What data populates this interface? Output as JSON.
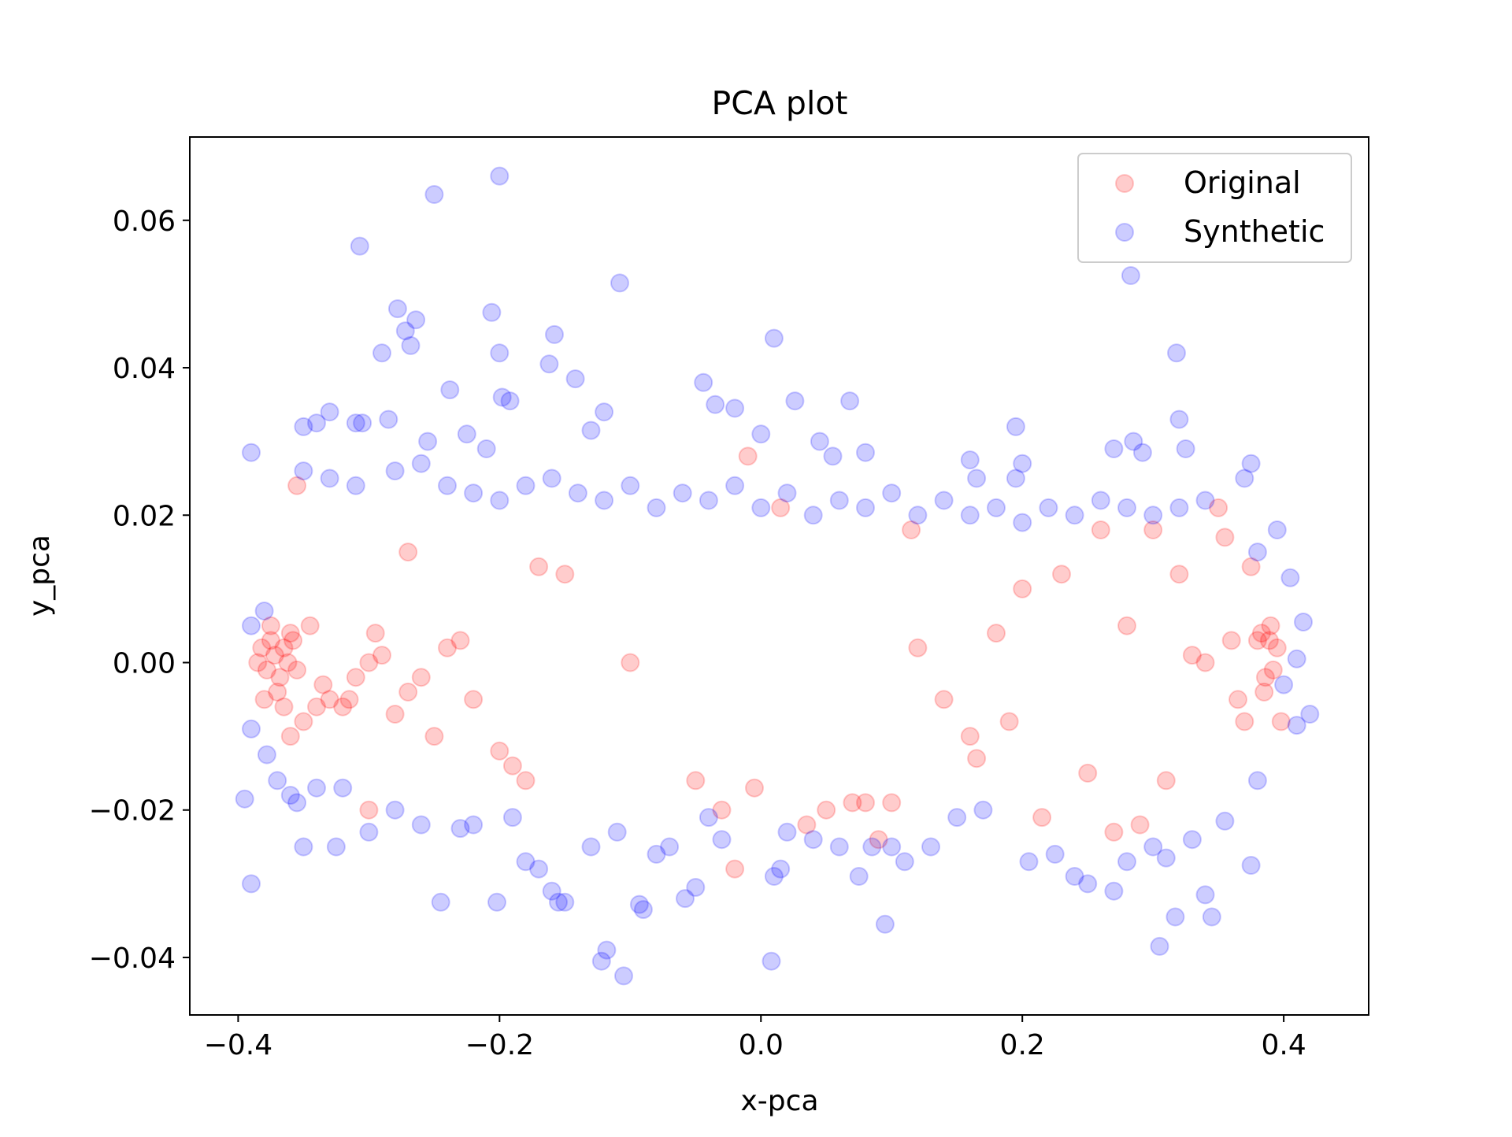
{
  "chart_data": {
    "type": "scatter",
    "title": "PCA plot",
    "xlabel": "x-pca",
    "ylabel": "y_pca",
    "xlim": [
      -0.437,
      0.465
    ],
    "ylim": [
      -0.0478,
      0.0713
    ],
    "xticks": [
      -0.4,
      -0.2,
      0.0,
      0.2,
      0.4
    ],
    "xtick_labels": [
      "−0.4",
      "−0.2",
      "0.0",
      "0.2",
      "0.4"
    ],
    "yticks": [
      -0.04,
      -0.02,
      0.0,
      0.02,
      0.04,
      0.06
    ],
    "ytick_labels": [
      "−0.04",
      "−0.02",
      "0.00",
      "0.02",
      "0.04",
      "0.06"
    ],
    "grid": false,
    "legend_position": "top-right",
    "series": [
      {
        "name": "Original",
        "color": "#ff0000",
        "alpha": 0.2,
        "points": [
          [
            -0.385,
            0.0
          ],
          [
            -0.382,
            0.002
          ],
          [
            -0.378,
            -0.001
          ],
          [
            -0.375,
            0.003
          ],
          [
            -0.372,
            0.001
          ],
          [
            -0.368,
            -0.002
          ],
          [
            -0.365,
            0.002
          ],
          [
            -0.362,
            0.0
          ],
          [
            -0.358,
            0.003
          ],
          [
            -0.355,
            -0.001
          ],
          [
            -0.38,
            -0.005
          ],
          [
            -0.375,
            0.005
          ],
          [
            -0.37,
            -0.004
          ],
          [
            -0.36,
            0.004
          ],
          [
            -0.365,
            -0.006
          ],
          [
            -0.355,
            0.024
          ],
          [
            -0.36,
            -0.01
          ],
          [
            -0.35,
            -0.008
          ],
          [
            -0.345,
            0.005
          ],
          [
            -0.34,
            -0.006
          ],
          [
            -0.33,
            -0.005
          ],
          [
            -0.32,
            -0.006
          ],
          [
            -0.31,
            -0.002
          ],
          [
            -0.3,
            0.0
          ],
          [
            -0.29,
            0.001
          ],
          [
            -0.28,
            -0.007
          ],
          [
            -0.27,
            -0.004
          ],
          [
            -0.26,
            -0.002
          ],
          [
            -0.25,
            -0.01
          ],
          [
            -0.24,
            0.002
          ],
          [
            -0.23,
            0.003
          ],
          [
            -0.22,
            -0.005
          ],
          [
            -0.2,
            -0.012
          ],
          [
            -0.19,
            -0.014
          ],
          [
            -0.18,
            -0.016
          ],
          [
            -0.17,
            0.013
          ],
          [
            -0.15,
            0.012
          ],
          [
            -0.1,
            0.0
          ],
          [
            -0.05,
            -0.016
          ],
          [
            -0.03,
            -0.02
          ],
          [
            -0.02,
            -0.028
          ],
          [
            -0.01,
            0.028
          ],
          [
            -0.005,
            -0.017
          ],
          [
            0.015,
            0.021
          ],
          [
            0.035,
            -0.022
          ],
          [
            0.05,
            -0.02
          ],
          [
            0.07,
            -0.019
          ],
          [
            0.08,
            -0.019
          ],
          [
            0.09,
            -0.024
          ],
          [
            0.1,
            -0.019
          ],
          [
            0.115,
            0.018
          ],
          [
            0.12,
            0.002
          ],
          [
            0.14,
            -0.005
          ],
          [
            0.16,
            -0.01
          ],
          [
            0.18,
            0.004
          ],
          [
            0.19,
            -0.008
          ],
          [
            0.2,
            0.01
          ],
          [
            0.215,
            -0.021
          ],
          [
            0.23,
            0.012
          ],
          [
            0.25,
            -0.015
          ],
          [
            0.26,
            0.018
          ],
          [
            0.27,
            -0.023
          ],
          [
            0.28,
            0.005
          ],
          [
            0.29,
            -0.022
          ],
          [
            0.3,
            0.018
          ],
          [
            0.31,
            -0.016
          ],
          [
            0.32,
            0.012
          ],
          [
            0.33,
            0.001
          ],
          [
            0.34,
            0.0
          ],
          [
            0.35,
            0.021
          ],
          [
            0.355,
            0.017
          ],
          [
            0.36,
            0.003
          ],
          [
            0.365,
            -0.005
          ],
          [
            0.37,
            -0.008
          ],
          [
            0.375,
            0.013
          ],
          [
            0.38,
            0.003
          ],
          [
            0.383,
            0.004
          ],
          [
            0.386,
            -0.002
          ],
          [
            0.389,
            0.003
          ],
          [
            0.392,
            -0.001
          ],
          [
            0.395,
            0.002
          ],
          [
            0.398,
            -0.008
          ],
          [
            0.385,
            -0.004
          ],
          [
            0.39,
            0.005
          ],
          [
            -0.3,
            -0.02
          ],
          [
            -0.315,
            -0.005
          ],
          [
            -0.335,
            -0.003
          ],
          [
            -0.27,
            0.015
          ],
          [
            -0.295,
            0.004
          ],
          [
            0.165,
            -0.013
          ]
        ]
      },
      {
        "name": "Synthetic",
        "color": "#0000ff",
        "alpha": 0.2,
        "points": [
          [
            -0.2,
            0.066
          ],
          [
            -0.25,
            0.0635
          ],
          [
            -0.307,
            0.0565
          ],
          [
            -0.108,
            0.0515
          ],
          [
            0.283,
            0.0525
          ],
          [
            -0.278,
            0.048
          ],
          [
            -0.206,
            0.0475
          ],
          [
            -0.264,
            0.0465
          ],
          [
            -0.272,
            0.045
          ],
          [
            -0.268,
            0.043
          ],
          [
            -0.29,
            0.042
          ],
          [
            -0.2,
            0.042
          ],
          [
            0.318,
            0.042
          ],
          [
            0.01,
            0.044
          ],
          [
            -0.158,
            0.0445
          ],
          [
            -0.162,
            0.0405
          ],
          [
            -0.142,
            0.0385
          ],
          [
            -0.238,
            0.037
          ],
          [
            -0.198,
            0.036
          ],
          [
            -0.192,
            0.0355
          ],
          [
            -0.044,
            0.038
          ],
          [
            0.026,
            0.0355
          ],
          [
            0.068,
            0.0355
          ],
          [
            -0.035,
            0.035
          ],
          [
            -0.02,
            0.0345
          ],
          [
            -0.39,
            0.0285
          ],
          [
            -0.39,
            -0.03
          ],
          [
            -0.395,
            -0.0185
          ],
          [
            -0.35,
            -0.025
          ],
          [
            -0.325,
            -0.025
          ],
          [
            -0.122,
            -0.0405
          ],
          [
            -0.118,
            -0.039
          ],
          [
            -0.105,
            -0.0425
          ],
          [
            0.008,
            -0.0405
          ],
          [
            0.095,
            -0.0355
          ],
          [
            0.305,
            -0.0385
          ],
          [
            0.317,
            -0.0345
          ],
          [
            0.345,
            -0.0345
          ],
          [
            0.34,
            -0.0315
          ],
          [
            -0.245,
            -0.0325
          ],
          [
            -0.202,
            -0.0325
          ],
          [
            -0.09,
            -0.0335
          ],
          [
            -0.093,
            -0.0328
          ],
          [
            -0.058,
            -0.032
          ],
          [
            -0.05,
            -0.0305
          ],
          [
            0.01,
            -0.029
          ],
          [
            0.015,
            -0.028
          ],
          [
            -0.155,
            -0.0325
          ],
          [
            0.31,
            -0.0265
          ],
          [
            0.375,
            -0.0275
          ],
          [
            0.41,
            -0.0085
          ],
          [
            0.42,
            -0.007
          ],
          [
            0.415,
            0.0055
          ],
          [
            0.405,
            0.0115
          ],
          [
            0.395,
            0.018
          ],
          [
            0.4,
            -0.003
          ],
          [
            0.41,
            0.0005
          ],
          [
            0.38,
            0.015
          ],
          [
            0.37,
            0.025
          ],
          [
            0.375,
            0.027
          ],
          [
            0.32,
            0.033
          ],
          [
            0.325,
            0.029
          ],
          [
            0.292,
            0.0285
          ],
          [
            0.285,
            0.03
          ],
          [
            0.27,
            0.029
          ],
          [
            0.195,
            0.032
          ],
          [
            0.195,
            0.025
          ],
          [
            0.2,
            0.027
          ],
          [
            0.165,
            0.025
          ],
          [
            0.16,
            0.0275
          ],
          [
            -0.33,
            0.034
          ],
          [
            -0.34,
            0.0325
          ],
          [
            -0.35,
            0.032
          ],
          [
            -0.31,
            0.0325
          ],
          [
            -0.305,
            0.0325
          ],
          [
            -0.285,
            0.033
          ],
          [
            -0.255,
            0.03
          ],
          [
            -0.225,
            0.031
          ],
          [
            -0.21,
            0.029
          ],
          [
            -0.13,
            0.0315
          ],
          [
            -0.12,
            0.034
          ],
          [
            0.0,
            0.031
          ],
          [
            0.045,
            0.03
          ],
          [
            0.055,
            0.028
          ],
          [
            0.08,
            0.0285
          ],
          [
            -0.38,
            0.007
          ],
          [
            -0.39,
            0.005
          ],
          [
            -0.39,
            -0.009
          ],
          [
            -0.378,
            -0.0125
          ],
          [
            -0.37,
            -0.016
          ],
          [
            -0.36,
            -0.018
          ],
          [
            -0.355,
            -0.019
          ],
          [
            -0.34,
            -0.017
          ],
          [
            -0.32,
            -0.017
          ],
          [
            -0.3,
            -0.023
          ],
          [
            -0.28,
            -0.02
          ],
          [
            -0.26,
            -0.022
          ],
          [
            -0.23,
            -0.0225
          ],
          [
            -0.22,
            -0.022
          ],
          [
            -0.19,
            -0.021
          ],
          [
            -0.18,
            -0.027
          ],
          [
            -0.17,
            -0.028
          ],
          [
            -0.16,
            -0.031
          ],
          [
            -0.15,
            -0.0325
          ],
          [
            -0.13,
            -0.025
          ],
          [
            -0.11,
            -0.023
          ],
          [
            -0.08,
            -0.026
          ],
          [
            -0.07,
            -0.025
          ],
          [
            -0.04,
            -0.021
          ],
          [
            -0.03,
            -0.024
          ],
          [
            0.02,
            -0.023
          ],
          [
            0.04,
            -0.024
          ],
          [
            0.06,
            -0.025
          ],
          [
            0.075,
            -0.029
          ],
          [
            0.085,
            -0.025
          ],
          [
            0.1,
            -0.025
          ],
          [
            0.11,
            -0.027
          ],
          [
            0.13,
            -0.025
          ],
          [
            0.15,
            -0.021
          ],
          [
            0.17,
            -0.02
          ],
          [
            0.205,
            -0.027
          ],
          [
            0.225,
            -0.026
          ],
          [
            0.24,
            -0.029
          ],
          [
            0.25,
            -0.03
          ],
          [
            0.27,
            -0.031
          ],
          [
            0.28,
            -0.027
          ],
          [
            0.3,
            -0.025
          ],
          [
            0.33,
            -0.024
          ],
          [
            0.355,
            -0.0215
          ],
          [
            0.38,
            -0.016
          ],
          [
            -0.35,
            0.026
          ],
          [
            -0.33,
            0.025
          ],
          [
            -0.31,
            0.024
          ],
          [
            -0.28,
            0.026
          ],
          [
            -0.26,
            0.027
          ],
          [
            -0.24,
            0.024
          ],
          [
            -0.22,
            0.023
          ],
          [
            -0.2,
            0.022
          ],
          [
            -0.18,
            0.024
          ],
          [
            -0.16,
            0.025
          ],
          [
            -0.14,
            0.023
          ],
          [
            -0.12,
            0.022
          ],
          [
            -0.1,
            0.024
          ],
          [
            -0.08,
            0.021
          ],
          [
            -0.06,
            0.023
          ],
          [
            -0.04,
            0.022
          ],
          [
            -0.02,
            0.024
          ],
          [
            0.0,
            0.021
          ],
          [
            0.02,
            0.023
          ],
          [
            0.04,
            0.02
          ],
          [
            0.06,
            0.022
          ],
          [
            0.08,
            0.021
          ],
          [
            0.1,
            0.023
          ],
          [
            0.12,
            0.02
          ],
          [
            0.14,
            0.022
          ],
          [
            0.16,
            0.02
          ],
          [
            0.18,
            0.021
          ],
          [
            0.2,
            0.019
          ],
          [
            0.22,
            0.021
          ],
          [
            0.24,
            0.02
          ],
          [
            0.26,
            0.022
          ],
          [
            0.28,
            0.021
          ],
          [
            0.3,
            0.02
          ],
          [
            0.32,
            0.021
          ],
          [
            0.34,
            0.022
          ]
        ]
      }
    ]
  }
}
